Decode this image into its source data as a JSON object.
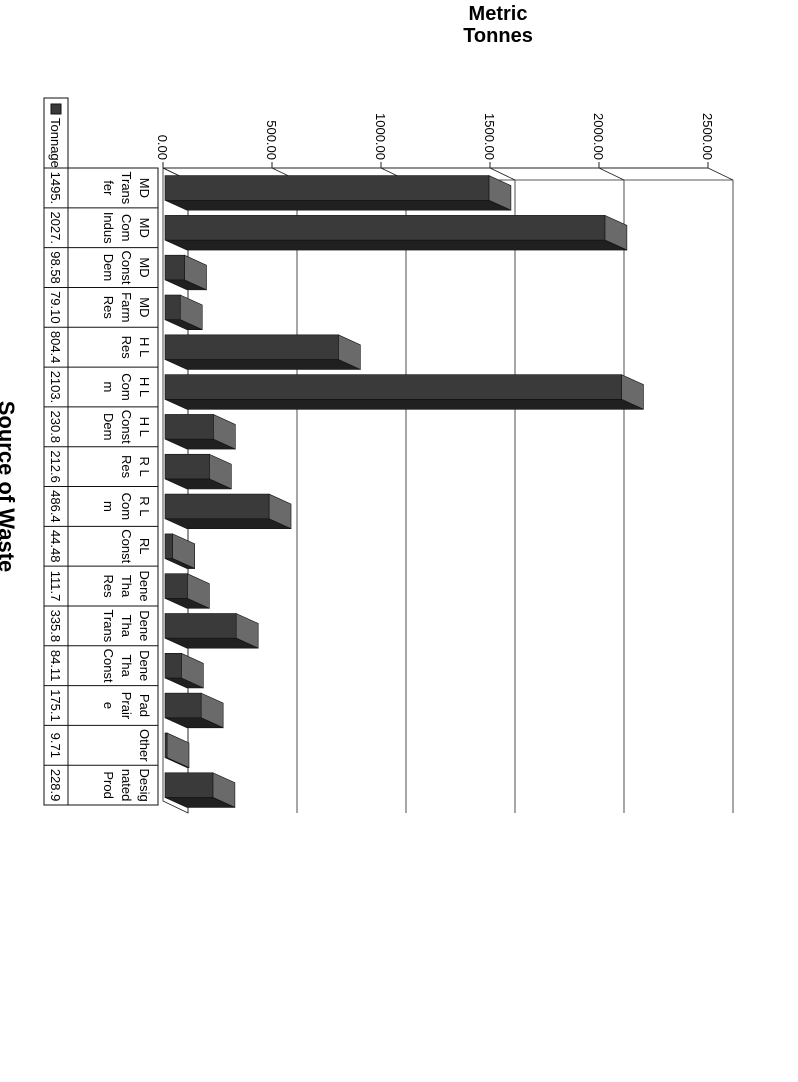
{
  "chart_data": {
    "type": "bar",
    "title": "",
    "ylabel": "Metric\nTonnes",
    "xlabel": "Source of Waste",
    "ylim": [
      0,
      2500
    ],
    "yticks": [
      "0.00",
      "500.00",
      "1000.00",
      "1500.00",
      "2000.00",
      "2500.00"
    ],
    "grid": true,
    "style": "3d-bars-with-data-table",
    "bar_color": "#3a3a3a",
    "categories": [
      "MD Trans fer",
      "MD Com Indus",
      "MD Const Dem",
      "MD Farm Res",
      "H L Res",
      "H L Com m",
      "H L Const Dem",
      "R L Res",
      "R L Com m",
      "RL Const",
      "Dene Tha Res",
      "Dene Tha Trans",
      "Dene Tha Const",
      "Pad Prair e",
      "Other",
      "Desig nated Prod"
    ],
    "category_lines": [
      [
        "MD",
        "Trans",
        "fer"
      ],
      [
        "MD",
        "Com",
        "Indus"
      ],
      [
        "MD",
        "Const",
        "Dem"
      ],
      [
        "MD",
        "Farm",
        "Res"
      ],
      [
        "H L",
        "Res"
      ],
      [
        "H L",
        "Com",
        "m"
      ],
      [
        "H L",
        "Const",
        "Dem"
      ],
      [
        "R L",
        "Res"
      ],
      [
        "R L",
        "Com",
        "m"
      ],
      [
        "RL",
        "Const"
      ],
      [
        "Dene",
        "Tha",
        "Res"
      ],
      [
        "Dene",
        "Tha",
        "Trans"
      ],
      [
        "Dene",
        "Tha",
        "Const"
      ],
      [
        "Pad",
        "Prair",
        "e"
      ],
      [
        "Other"
      ],
      [
        "Desig",
        "nated",
        "Prod"
      ]
    ],
    "series": [
      {
        "name": "Tonnage",
        "values": [
          1495,
          2027,
          98.58,
          79.1,
          804.4,
          2103,
          230.8,
          212.6,
          486.4,
          44.48,
          111.7,
          335.8,
          84.11,
          175.1,
          9.71,
          228.9
        ],
        "table_labels": [
          "1495.",
          "2027.",
          "98.58",
          "79.10",
          "804.4",
          "2103.",
          "230.8",
          "212.6",
          "486.4",
          "44.48",
          "111.7",
          "335.8",
          "84.11",
          "175.1",
          "9.71",
          "228.9"
        ]
      }
    ]
  }
}
